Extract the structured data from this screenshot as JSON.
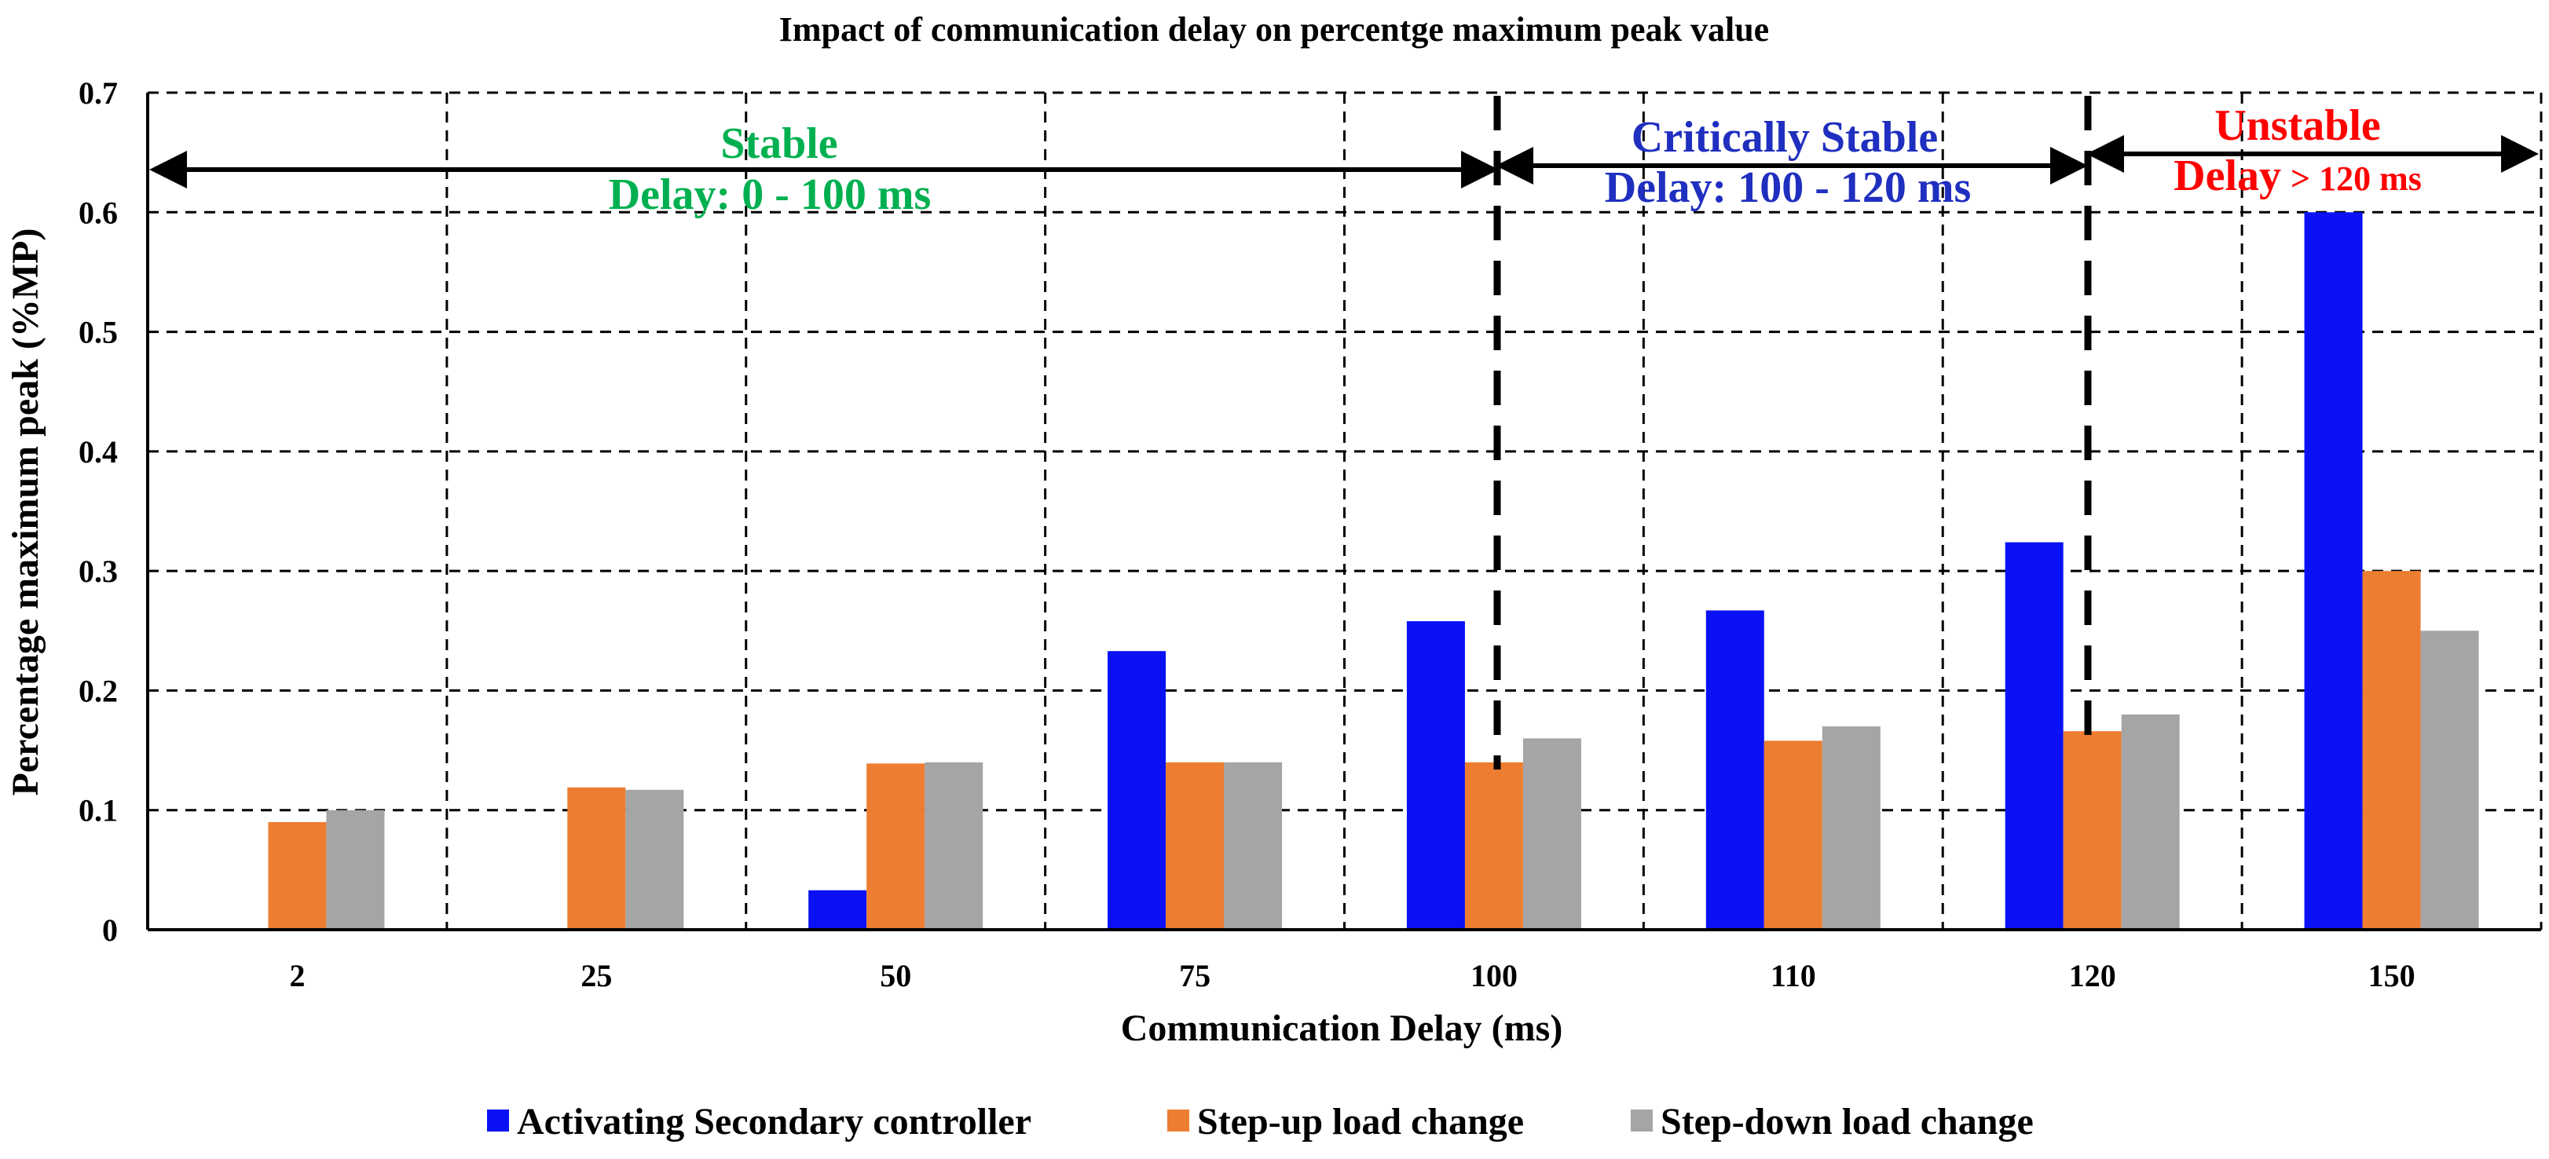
{
  "chart_data": {
    "type": "bar",
    "title": "Impact of communication delay on percentge maximum peak value",
    "xlabel": "Communication Delay (ms)",
    "ylabel": "Percentage maximum peak (%MP)",
    "categories": [
      "2",
      "25",
      "50",
      "75",
      "100",
      "110",
      "120",
      "150"
    ],
    "ylim": [
      0,
      0.7
    ],
    "yticks": [
      0,
      0.1,
      0.2,
      0.3,
      0.4,
      0.5,
      0.6,
      0.7
    ],
    "ytick_labels": [
      "0",
      "0.1",
      "0.2",
      "0.3",
      "0.4",
      "0.5",
      "0.6",
      "0.7"
    ],
    "grid": true,
    "legend_position": "bottom",
    "series": [
      {
        "name": "Activating Secondary controller",
        "color": "#0a12f5",
        "values": [
          0,
          0,
          0.033,
          0.233,
          0.258,
          0.267,
          0.324,
          0.6
        ]
      },
      {
        "name": "Step-up load change",
        "color": "#ed7d31",
        "values": [
          0.09,
          0.119,
          0.139,
          0.14,
          0.14,
          0.158,
          0.166,
          0.3
        ]
      },
      {
        "name": "Step-down load change",
        "color": "#a5a5a5",
        "values": [
          0.1,
          0.117,
          0.14,
          0.14,
          0.16,
          0.17,
          0.18,
          0.25
        ]
      }
    ],
    "regions": [
      {
        "label": "Stable",
        "range_label": "Delay: 0 - 100 ms",
        "color": "#00b050"
      },
      {
        "label": "Critically Stable",
        "range_label": "Delay: 100 - 120 ms",
        "color": "#1f2fbf"
      },
      {
        "label": "Unstable",
        "range_label_main": "Delay",
        "range_label_detail": "> 120 ms",
        "color": "#ff0000"
      }
    ]
  }
}
